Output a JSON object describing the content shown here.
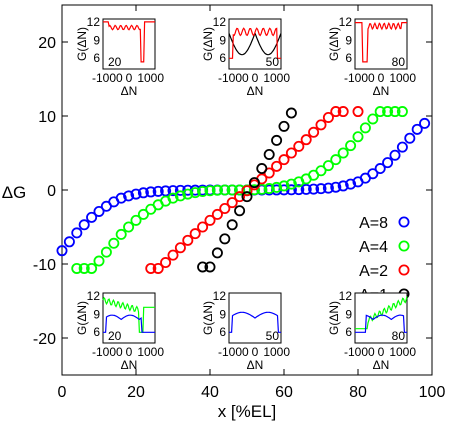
{
  "chart_data": {
    "type": "scatter",
    "xlabel": "x [%EL]",
    "ylabel": "ΔG",
    "xlim": [
      0,
      100
    ],
    "ylim": [
      -25,
      25
    ],
    "xticks": [
      0,
      20,
      40,
      60,
      80,
      100
    ],
    "yticks": [
      -20,
      -10,
      0,
      10,
      20
    ],
    "legend_position": "right",
    "series": [
      {
        "name": "A=8",
        "color": "#0000ff",
        "x": [
          0,
          2,
          4,
          6,
          8,
          10,
          12,
          14,
          16,
          18,
          20,
          22,
          24,
          26,
          28,
          30,
          32,
          34,
          36,
          38,
          40,
          42,
          44,
          46,
          48,
          50,
          52,
          54,
          56,
          58,
          60,
          62,
          64,
          66,
          68,
          70,
          72,
          74,
          76,
          78,
          80,
          82,
          84,
          86,
          88,
          90,
          92,
          94,
          96,
          98
        ],
        "y": [
          -8.2,
          -7.0,
          -5.8,
          -4.7,
          -3.7,
          -2.9,
          -2.2,
          -1.6,
          -1.1,
          -0.8,
          -0.55,
          -0.38,
          -0.26,
          -0.18,
          -0.12,
          -0.08,
          -0.05,
          -0.03,
          -0.02,
          -0.01,
          0,
          0,
          0,
          0,
          0,
          0,
          0,
          0,
          0,
          0.01,
          0.02,
          0.03,
          0.05,
          0.08,
          0.12,
          0.18,
          0.26,
          0.38,
          0.55,
          0.8,
          1.1,
          1.6,
          2.2,
          2.9,
          3.7,
          4.7,
          5.8,
          7.0,
          8.2,
          9.0
        ]
      },
      {
        "name": "A=4",
        "color": "#00ff00",
        "x": [
          4,
          6,
          8,
          10,
          12,
          14,
          16,
          18,
          20,
          22,
          24,
          26,
          28,
          30,
          32,
          34,
          36,
          38,
          40,
          42,
          44,
          46,
          48,
          50,
          52,
          54,
          56,
          58,
          60,
          62,
          64,
          66,
          68,
          70,
          72,
          74,
          76,
          78,
          80,
          82,
          84,
          86,
          88,
          90,
          92
        ],
        "y": [
          -10.6,
          -10.6,
          -10.6,
          -9.6,
          -8.4,
          -7.2,
          -6.0,
          -5.0,
          -4.1,
          -3.3,
          -2.6,
          -2.0,
          -1.5,
          -1.1,
          -0.8,
          -0.55,
          -0.35,
          -0.2,
          -0.1,
          -0.04,
          0,
          0,
          0,
          0,
          0.04,
          0.1,
          0.2,
          0.35,
          0.55,
          0.8,
          1.1,
          1.5,
          2.0,
          2.6,
          3.3,
          4.1,
          5.0,
          6.0,
          7.2,
          8.4,
          9.6,
          10.6,
          10.6,
          10.6,
          10.6
        ]
      },
      {
        "name": "A=2",
        "color": "#ff0000",
        "x": [
          24,
          26,
          28,
          30,
          32,
          34,
          36,
          38,
          40,
          42,
          44,
          46,
          48,
          50,
          52,
          54,
          56,
          58,
          60,
          62,
          64,
          66,
          68,
          70,
          72,
          74,
          76,
          80
        ],
        "y": [
          -10.6,
          -10.6,
          -9.8,
          -8.8,
          -7.8,
          -6.8,
          -5.9,
          -5.0,
          -4.1,
          -3.3,
          -2.5,
          -1.7,
          -0.9,
          -0.1,
          0.7,
          1.5,
          2.3,
          3.2,
          4.1,
          5.0,
          5.9,
          6.8,
          7.8,
          8.8,
          9.8,
          10.6,
          10.6,
          10.6
        ]
      },
      {
        "name": "A=1",
        "color": "#000000",
        "x": [
          38,
          40,
          42,
          44,
          46,
          48,
          50,
          52,
          54,
          56,
          58,
          60,
          62
        ],
        "y": [
          -10.4,
          -10.4,
          -8.5,
          -6.6,
          -4.7,
          -2.8,
          -0.9,
          1.0,
          2.9,
          4.8,
          6.7,
          8.6,
          10.4
        ]
      }
    ],
    "insets": [
      {
        "position": "top-left",
        "label": "20",
        "ylabel": "G(ΔN)",
        "xlabel": "ΔN",
        "yticks": [
          6,
          9,
          12
        ],
        "xticks": [
          -1000,
          0,
          1000
        ],
        "color": "#ff0000"
      },
      {
        "position": "top-center",
        "label": "50",
        "ylabel": "G(ΔN)",
        "xlabel": "ΔN",
        "yticks": [
          6,
          9,
          12
        ],
        "xticks": [
          -1000,
          0,
          1000
        ],
        "color": "#ff0000"
      },
      {
        "position": "top-right",
        "label": "80",
        "ylabel": "G(ΔN)",
        "xlabel": "ΔN",
        "yticks": [
          6,
          9,
          12
        ],
        "xticks": [
          -1000,
          0,
          1000
        ],
        "color": "#ff0000"
      },
      {
        "position": "bottom-left",
        "label": "20",
        "ylabel": "G(ΔN)",
        "xlabel": "ΔN",
        "yticks": [
          6,
          9,
          12
        ],
        "xticks": [
          -1000,
          0,
          1000
        ],
        "color": "#0000ff"
      },
      {
        "position": "bottom-center",
        "label": "50",
        "ylabel": "G(ΔN)",
        "xlabel": "ΔN",
        "yticks": [
          6,
          9,
          12
        ],
        "xticks": [
          -1000,
          0,
          1000
        ],
        "color": "#0000ff"
      },
      {
        "position": "bottom-right",
        "label": "80",
        "ylabel": "G(ΔN)",
        "xlabel": "ΔN",
        "yticks": [
          6,
          9,
          12
        ],
        "xticks": [
          -1000,
          0,
          1000
        ],
        "color": "#0000ff"
      }
    ]
  }
}
